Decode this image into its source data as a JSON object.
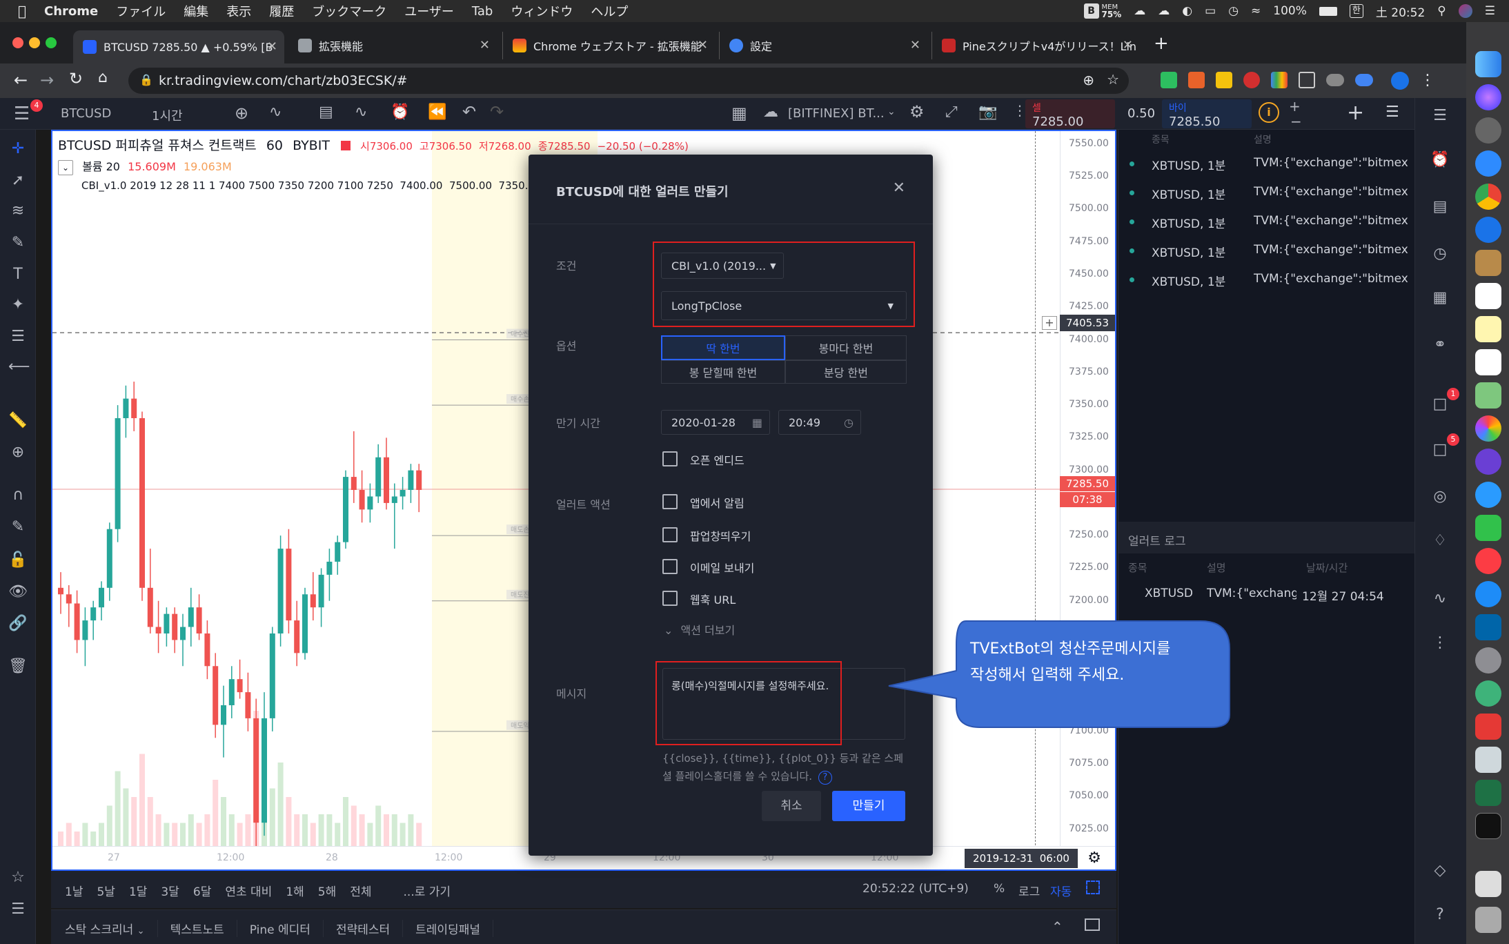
{
  "menubar": {
    "app": "Chrome",
    "items": [
      "ファイル",
      "編集",
      "表示",
      "履歴",
      "ブックマーク",
      "ユーザー",
      "Tab",
      "ウィンドウ",
      "ヘルプ"
    ],
    "mem": "MEM",
    "mem_pct": "75%",
    "battery": "100%",
    "clock": "土 20:52"
  },
  "tabs": [
    {
      "title": "BTCUSD 7285.50 ▲ +0.59% [B",
      "close": "✕"
    },
    {
      "title": "拡張機能",
      "close": "✕"
    },
    {
      "title": "Chrome ウェブストア - 拡張機能",
      "close": "✕"
    },
    {
      "title": "設定",
      "close": "✕"
    },
    {
      "title": "Pineスクリプトv4がリリース！Lin",
      "close": "✕"
    }
  ],
  "new_tab": "+",
  "address": "kr.tradingview.com/chart/zb03ECSK/#",
  "tv": {
    "symbol": "BTCUSD",
    "interval": "1시간",
    "source_label": "[BITFINEX] BT...",
    "sell_label": "셀",
    "sell_price": "7285.00",
    "spread": "0.50",
    "buy_label": "바이",
    "buy_price": "7285.50"
  },
  "legend": {
    "title": "BTCUSD 퍼피츄얼 퓨쳐스 컨트랙트",
    "interval": "60",
    "exchange": "BYBIT",
    "ohlc_o": "시7306.00",
    "ohlc_h": "고7306.50",
    "ohlc_l": "저7268.00",
    "ohlc_c": "종7285.50",
    "change": "−20.50 (−0.28%)",
    "volume_label": "볼륨 20",
    "volume_v1": "15.609M",
    "volume_v2": "19.063M",
    "indicator": "CBI_v1.0 2019 12 28 11 1 7400 7500 7350 7200 7100 7250  7400.00  7500.00  7350.00"
  },
  "chart_data": {
    "type": "candlestick",
    "y_ticks": [
      "7550.00",
      "7525.00",
      "7500.00",
      "7475.00",
      "7450.00",
      "7425.00",
      "7400.00",
      "7375.00",
      "7350.00",
      "7325.00",
      "7300.00",
      "7275.00",
      "7250.00",
      "7225.00",
      "7200.00",
      "7175.00",
      "7150.00",
      "7125.00",
      "7100.00",
      "7075.00",
      "7050.00",
      "7025.00"
    ],
    "x_ticks": [
      "27",
      "12:00",
      "28",
      "12:00",
      "29",
      "12:00",
      "30",
      "12:00"
    ],
    "ylim": [
      7010,
      7560
    ],
    "crosshair_price": "7405.53",
    "last_price": "7285.50",
    "countdown": "07:38",
    "crosshair_time": "2019-12-31  06:00",
    "hlines": [
      {
        "label": "매수진입",
        "y": 7400
      },
      {
        "label": "매수손절",
        "y": 7350
      },
      {
        "label": "매도손절",
        "y": 7250
      },
      {
        "label": "매도진입",
        "y": 7200
      },
      {
        "label": "매도익절",
        "y": 7100
      }
    ],
    "candles": [
      [
        7210,
        7222,
        7190,
        7205
      ],
      [
        7205,
        7212,
        7180,
        7198
      ],
      [
        7198,
        7208,
        7160,
        7170
      ],
      [
        7170,
        7195,
        7150,
        7185
      ],
      [
        7185,
        7200,
        7170,
        7195
      ],
      [
        7195,
        7215,
        7185,
        7210
      ],
      [
        7210,
        7260,
        7200,
        7255
      ],
      [
        7255,
        7350,
        7245,
        7340
      ],
      [
        7340,
        7365,
        7325,
        7355
      ],
      [
        7355,
        7368,
        7330,
        7340
      ],
      [
        7340,
        7345,
        7200,
        7210
      ],
      [
        7210,
        7240,
        7175,
        7180
      ],
      [
        7180,
        7200,
        7160,
        7175
      ],
      [
        7175,
        7195,
        7165,
        7190
      ],
      [
        7190,
        7195,
        7160,
        7170
      ],
      [
        7170,
        7190,
        7150,
        7180
      ],
      [
        7180,
        7210,
        7165,
        7195
      ],
      [
        7195,
        7205,
        7170,
        7175
      ],
      [
        7175,
        7185,
        7140,
        7150
      ],
      [
        7150,
        7160,
        7095,
        7105
      ],
      [
        7105,
        7135,
        7080,
        7120
      ],
      [
        7120,
        7150,
        7110,
        7140
      ],
      [
        7140,
        7155,
        7125,
        7130
      ],
      [
        7130,
        7145,
        7100,
        7110
      ],
      [
        7110,
        7125,
        7010,
        7030
      ],
      [
        7030,
        7130,
        7020,
        7110
      ],
      [
        7110,
        7180,
        7100,
        7175
      ],
      [
        7175,
        7250,
        7165,
        7240
      ],
      [
        7240,
        7255,
        7175,
        7185
      ],
      [
        7185,
        7200,
        7150,
        7160
      ],
      [
        7160,
        7210,
        7155,
        7205
      ],
      [
        7205,
        7222,
        7185,
        7195
      ],
      [
        7195,
        7225,
        7180,
        7220
      ],
      [
        7220,
        7240,
        7200,
        7230
      ],
      [
        7230,
        7250,
        7220,
        7245
      ],
      [
        7245,
        7300,
        7240,
        7295
      ],
      [
        7295,
        7330,
        7275,
        7285
      ],
      [
        7285,
        7300,
        7260,
        7270
      ],
      [
        7270,
        7290,
        7260,
        7280
      ],
      [
        7280,
        7320,
        7275,
        7310
      ],
      [
        7310,
        7325,
        7270,
        7275
      ],
      [
        7275,
        7290,
        7240,
        7280
      ],
      [
        7280,
        7295,
        7270,
        7285
      ],
      [
        7285,
        7305,
        7275,
        7300
      ],
      [
        7300,
        7305,
        7268,
        7285
      ]
    ],
    "volumes": [
      2,
      3,
      2,
      3,
      2,
      3,
      5,
      9,
      7,
      6,
      11,
      6,
      4,
      3,
      3,
      3,
      4,
      3,
      4,
      8,
      6,
      4,
      3,
      4,
      16,
      9,
      7,
      10,
      6,
      4,
      4,
      3,
      4,
      4,
      3,
      6,
      5,
      4,
      3,
      5,
      4,
      4,
      3,
      4,
      3
    ]
  },
  "modal": {
    "title": "BTCUSD에 대한 얼러트 만들기",
    "close": "✕",
    "condition_label": "조건",
    "condition_value": "CBI_v1.0 (2019...",
    "condition_sub": "LongTpClose",
    "options_label": "옵션",
    "opt_once": "딱 한번",
    "opt_every_bar": "봉마다 한번",
    "opt_bar_close": "봉 닫힐때 한번",
    "opt_minute": "분당 한번",
    "expire_label": "만기 시간",
    "expire_date": "2020-01-28",
    "expire_time": "20:49",
    "open_ended": "오픈 엔디드",
    "action_label": "얼러트 액션",
    "act_app": "앱에서 알림",
    "act_popup": "팝업창띄우기",
    "act_email": "이메일 보내기",
    "act_webhook": "웹훅 URL",
    "more_actions": "액션 더보기",
    "message_label": "메시지",
    "message_value": "롱(매수)익절메시지를 설정해주세요.",
    "hint": "{{close}}, {{time}}, {{plot_0}} 등과 같은 스페셜 플레이스홀더를 쓸 수 있습니다.",
    "cancel": "취소",
    "create": "만들기"
  },
  "callout": {
    "line1": "TVExtBot의 청산주문메시지를",
    "line2": "작성해서 입력해 주세요."
  },
  "range": {
    "items": [
      "1날",
      "5날",
      "1달",
      "3달",
      "6달",
      "연초 대비",
      "1해",
      "5해",
      "전체"
    ],
    "goto": "...로 가기",
    "clock": "20:52:22 (UTC+9)",
    "pct": "%",
    "log": "로그",
    "auto": "자동"
  },
  "panels": [
    "스탁 스크리너",
    "텍스트노트",
    "Pine 에디터",
    "전략테스터",
    "트레이딩패널"
  ],
  "alerts": {
    "col_symbol": "종목",
    "col_desc": "설명",
    "rows": [
      {
        "sym": "XBTUSD, 1분",
        "desc": "TVM:{\"exchange\":\"bitmex"
      },
      {
        "sym": "XBTUSD, 1분",
        "desc": "TVM:{\"exchange\":\"bitmex"
      },
      {
        "sym": "XBTUSD, 1분",
        "desc": "TVM:{\"exchange\":\"bitmex"
      },
      {
        "sym": "XBTUSD, 1분",
        "desc": "TVM:{\"exchange\":\"bitmex"
      },
      {
        "sym": "XBTUSD, 1분",
        "desc": "TVM:{\"exchange\":\"bitmex"
      }
    ],
    "log_title": "얼러트 로그",
    "log_col_symbol": "종목",
    "log_col_desc": "설명",
    "log_col_time": "날짜/시간",
    "log_row": {
      "sym": "XBTUSD",
      "desc": "TVM:{\"exchange",
      "time": "12월 27 04:54"
    }
  },
  "badges": {
    "menu": "4",
    "chat1": "1",
    "chat2": "5"
  },
  "colors": {
    "up": "#26a69a",
    "down": "#ef5350",
    "accent": "#2962ff",
    "highlight": "#e01f1f"
  }
}
